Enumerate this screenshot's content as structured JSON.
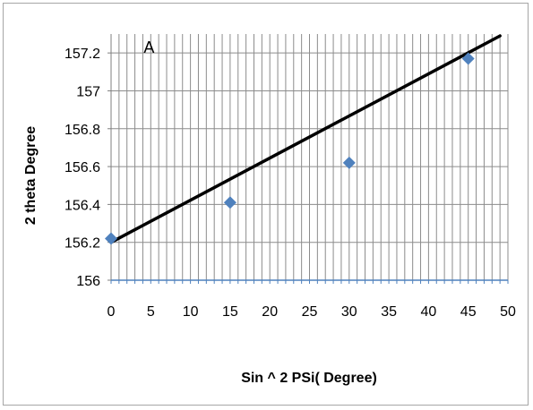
{
  "chart_data": {
    "type": "scatter",
    "title": "",
    "annotation": "A",
    "xlabel": "Sin ^ 2 PSi( Degree)",
    "ylabel": "2 theta Degree",
    "xlim": [
      0,
      50
    ],
    "ylim": [
      156,
      157.3
    ],
    "x_ticks": [
      "0",
      "5",
      "10",
      "15",
      "20",
      "25",
      "30",
      "35",
      "40",
      "45",
      "50"
    ],
    "y_ticks": [
      "156",
      "156.2",
      "156.4",
      "156.6",
      "156.8",
      "157",
      "157.2"
    ],
    "x_grid_step": 1,
    "grid": true,
    "legend": "none",
    "series": [
      {
        "points": [
          {
            "x": 0,
            "y": 156.22
          },
          {
            "x": 15,
            "y": 156.41
          },
          {
            "x": 30,
            "y": 156.62
          },
          {
            "x": 45,
            "y": 157.17
          }
        ],
        "marker": "diamond",
        "color": "#4f81bd"
      }
    ],
    "trendline": {
      "from": {
        "x": 0,
        "y": 156.2
      },
      "to": {
        "x": 49,
        "y": 157.29
      },
      "color": "#000000"
    }
  }
}
